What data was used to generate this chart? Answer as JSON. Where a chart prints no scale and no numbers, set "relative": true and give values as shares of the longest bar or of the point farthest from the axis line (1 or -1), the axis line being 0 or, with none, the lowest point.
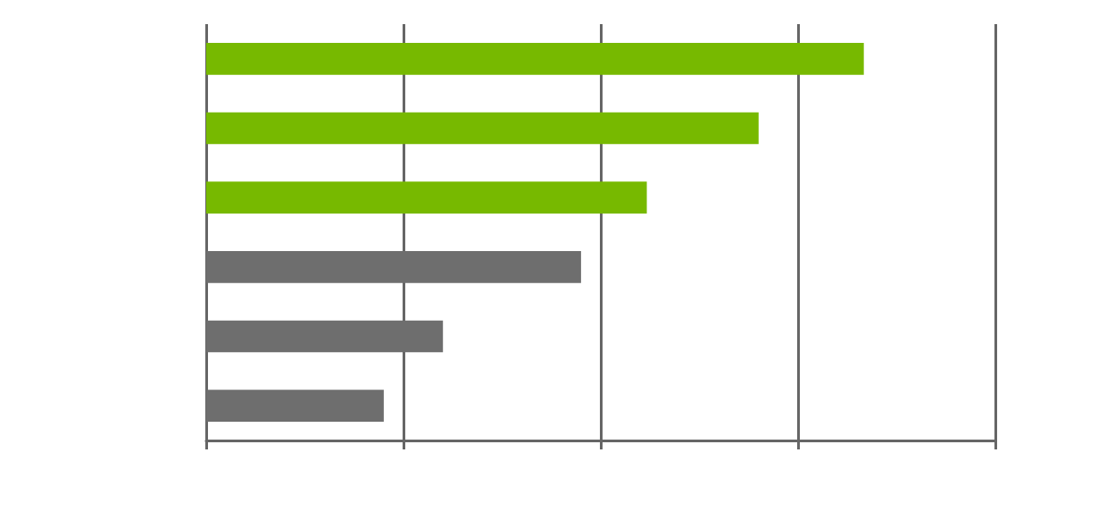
{
  "chart_data": {
    "type": "bar",
    "orientation": "horizontal",
    "relative": true,
    "categories": [
      null,
      null,
      null,
      null,
      null,
      null
    ],
    "values": [
      1,
      0.84,
      0.67,
      0.57,
      0.36,
      0.27
    ],
    "colors": [
      "#77b900",
      "#77b900",
      "#77b900",
      "#6e6e6e",
      "#6e6e6e",
      "#6e6e6e"
    ],
    "grid": "x"
  }
}
